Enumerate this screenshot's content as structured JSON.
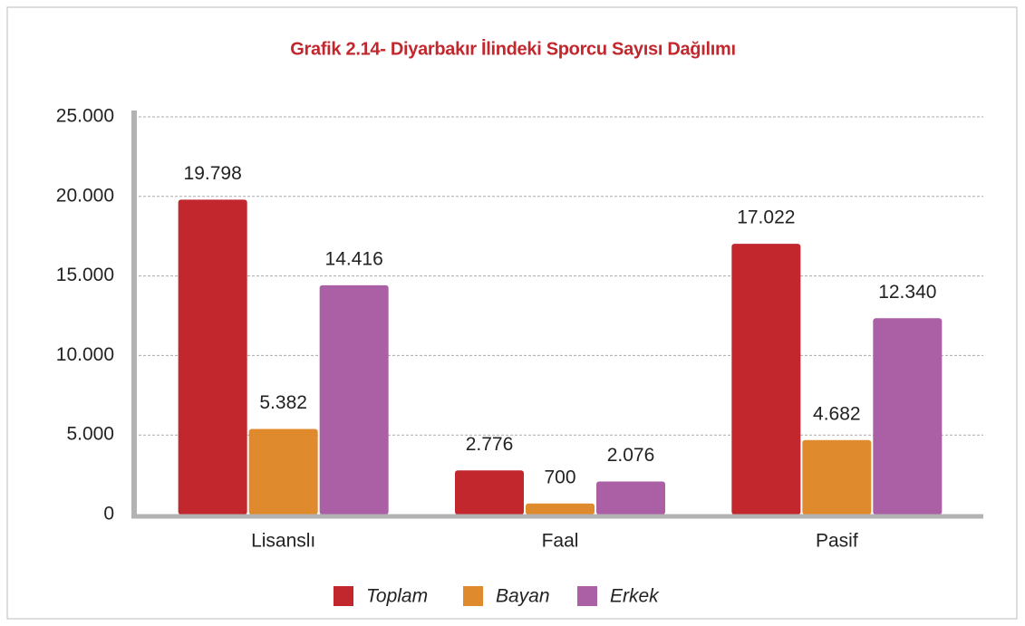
{
  "chart_data": {
    "type": "bar",
    "title": "Grafik 2.14- Diyarbakır İlindeki Sporcu Sayısı Dağılımı",
    "categories": [
      "Lisanslı",
      "Faal",
      "Pasif"
    ],
    "series": [
      {
        "name": "Toplam",
        "color": "#c1272d",
        "values": [
          19798,
          2776,
          17022
        ],
        "value_labels": [
          "19.798",
          "2.776",
          "17.022"
        ]
      },
      {
        "name": "Bayan",
        "color": "#e08a2e",
        "values": [
          5382,
          700,
          4682
        ],
        "value_labels": [
          "5.382",
          "700",
          "4.682"
        ]
      },
      {
        "name": "Erkek",
        "color": "#ab5fa5",
        "values": [
          14416,
          2076,
          12340
        ],
        "value_labels": [
          "14.416",
          "2.076",
          "12.340"
        ]
      }
    ],
    "ylim": [
      0,
      25000
    ],
    "yticks": [
      0,
      {
        "value": 5000,
        "label": "5.000"
      },
      {
        "value": 10000,
        "label": "10.000"
      },
      {
        "value": 15000,
        "label": "15.000"
      },
      {
        "value": 20000,
        "label": "20.000"
      },
      {
        "value": 25000,
        "label": "25.000"
      }
    ],
    "grid": true,
    "legend": "bottom"
  }
}
